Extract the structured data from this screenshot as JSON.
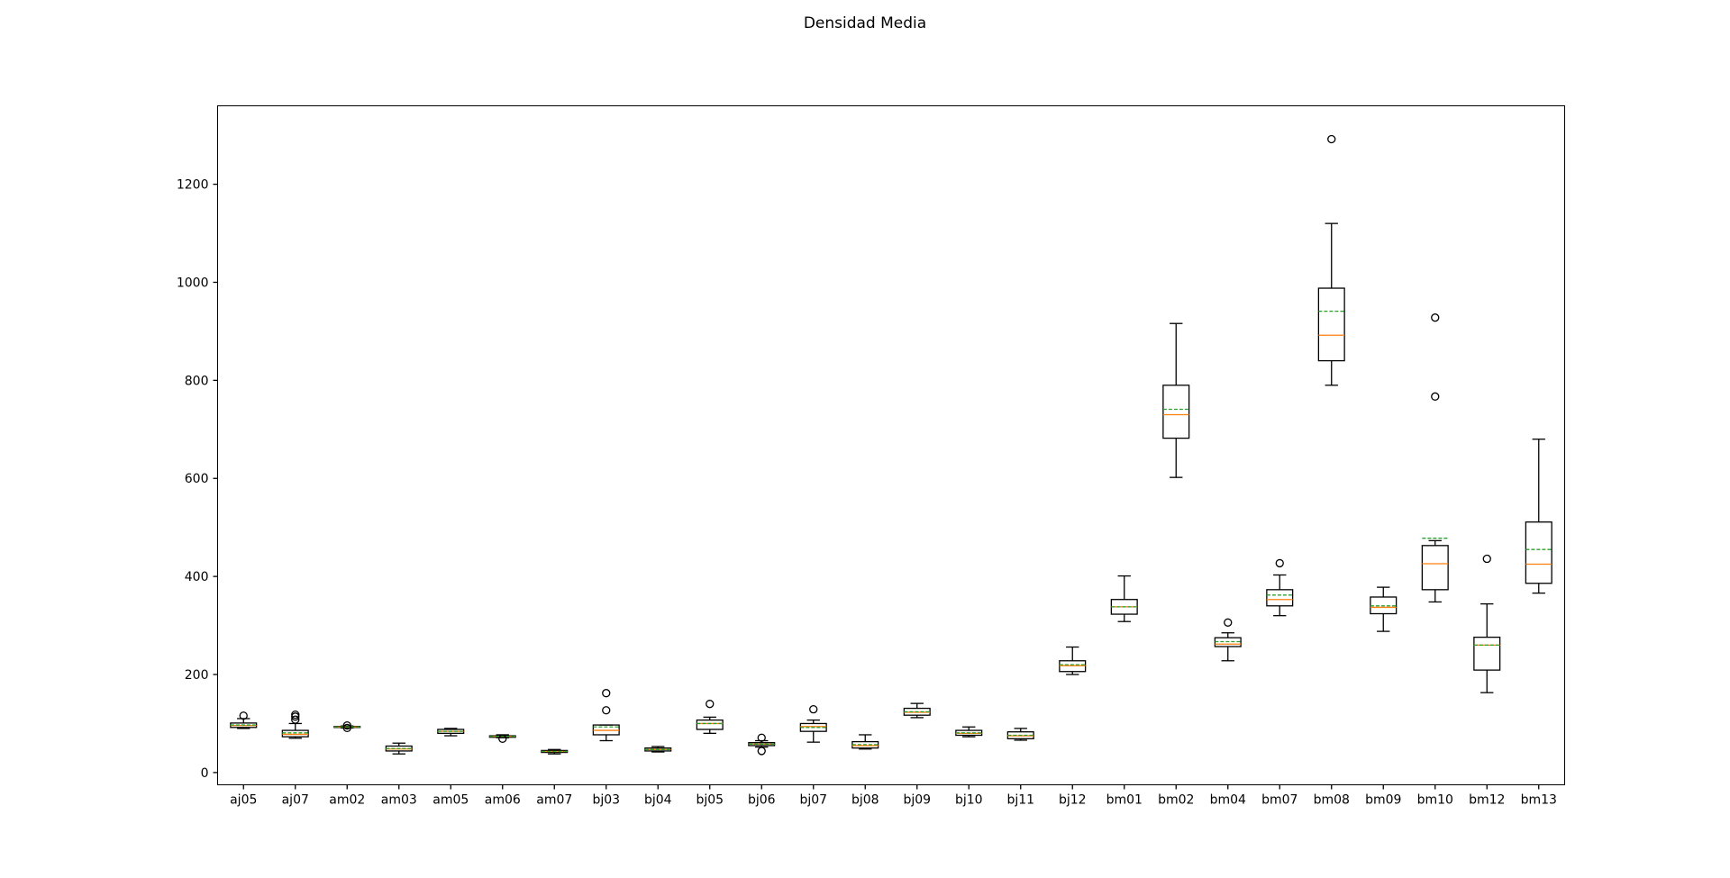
{
  "chart_data": {
    "type": "box",
    "title": "Densidad Media",
    "xlabel": "",
    "ylabel": "",
    "ylim": [
      -25,
      1360
    ],
    "yticks": [
      0,
      200,
      400,
      600,
      800,
      1000,
      1200
    ],
    "grid": false,
    "legend": "none",
    "colors": {
      "median": "#ff7f0e",
      "mean": "#2ca02c",
      "box": "#000000"
    },
    "categories": [
      "aj05",
      "aj07",
      "am02",
      "am03",
      "am05",
      "am06",
      "am07",
      "bj03",
      "bj04",
      "bj05",
      "bj06",
      "bj07",
      "bj08",
      "bj09",
      "bj10",
      "bj11",
      "bj12",
      "bm01",
      "bm02",
      "bm04",
      "bm07",
      "bm08",
      "bm09",
      "bm10",
      "bm12",
      "bm13"
    ],
    "boxes": [
      {
        "whislo": 90,
        "q1": 92,
        "med": 96,
        "mean": 97,
        "q3": 101,
        "whishi": 110,
        "fliers": [
          116
        ]
      },
      {
        "whislo": 70,
        "q1": 73,
        "med": 78,
        "mean": 81,
        "q3": 86,
        "whishi": 100,
        "fliers": [
          108,
          114,
          118
        ]
      },
      {
        "whislo": 91,
        "q1": 92,
        "med": 93,
        "mean": 93,
        "q3": 94,
        "whishi": 95,
        "fliers": [
          91,
          96
        ]
      },
      {
        "whislo": 38,
        "q1": 44,
        "med": 48,
        "mean": 49,
        "q3": 54,
        "whishi": 60,
        "fliers": []
      },
      {
        "whislo": 75,
        "q1": 80,
        "med": 84,
        "mean": 84,
        "q3": 88,
        "whishi": 90,
        "fliers": []
      },
      {
        "whislo": 71,
        "q1": 72,
        "med": 74,
        "mean": 74,
        "q3": 75,
        "whishi": 77,
        "fliers": [
          69
        ]
      },
      {
        "whislo": 38,
        "q1": 41,
        "med": 43,
        "mean": 43,
        "q3": 45,
        "whishi": 47,
        "fliers": []
      },
      {
        "whislo": 65,
        "q1": 77,
        "med": 86,
        "mean": 93,
        "q3": 97,
        "whishi": 97,
        "fliers": [
          127,
          162
        ]
      },
      {
        "whislo": 42,
        "q1": 44,
        "med": 47,
        "mean": 47,
        "q3": 50,
        "whishi": 53,
        "fliers": []
      },
      {
        "whislo": 80,
        "q1": 88,
        "med": 100,
        "mean": 100,
        "q3": 107,
        "whishi": 113,
        "fliers": [
          140
        ]
      },
      {
        "whislo": 52,
        "q1": 55,
        "med": 58,
        "mean": 58,
        "q3": 61,
        "whishi": 65,
        "fliers": [
          44,
          71
        ]
      },
      {
        "whislo": 62,
        "q1": 84,
        "med": 94,
        "mean": 92,
        "q3": 100,
        "whishi": 107,
        "fliers": [
          129
        ]
      },
      {
        "whislo": 48,
        "q1": 50,
        "med": 55,
        "mean": 57,
        "q3": 63,
        "whishi": 77,
        "fliers": []
      },
      {
        "whislo": 112,
        "q1": 117,
        "med": 123,
        "mean": 124,
        "q3": 131,
        "whishi": 141,
        "fliers": []
      },
      {
        "whislo": 73,
        "q1": 76,
        "med": 80,
        "mean": 81,
        "q3": 86,
        "whishi": 93,
        "fliers": []
      },
      {
        "whislo": 66,
        "q1": 69,
        "med": 75,
        "mean": 76,
        "q3": 83,
        "whishi": 90,
        "fliers": []
      },
      {
        "whislo": 200,
        "q1": 206,
        "med": 218,
        "mean": 220,
        "q3": 228,
        "whishi": 256,
        "fliers": []
      },
      {
        "whislo": 308,
        "q1": 323,
        "med": 338,
        "mean": 338,
        "q3": 353,
        "whishi": 401,
        "fliers": []
      },
      {
        "whislo": 602,
        "q1": 682,
        "med": 730,
        "mean": 741,
        "q3": 790,
        "whishi": 916,
        "fliers": []
      },
      {
        "whislo": 228,
        "q1": 257,
        "med": 262,
        "mean": 267,
        "q3": 275,
        "whishi": 285,
        "fliers": [
          306
        ]
      },
      {
        "whislo": 320,
        "q1": 340,
        "med": 353,
        "mean": 362,
        "q3": 373,
        "whishi": 403,
        "fliers": [
          427
        ]
      },
      {
        "whislo": 790,
        "q1": 840,
        "med": 892,
        "mean": 941,
        "q3": 988,
        "whishi": 1120,
        "fliers": [
          1292
        ]
      },
      {
        "whislo": 288,
        "q1": 324,
        "med": 337,
        "mean": 340,
        "q3": 358,
        "whishi": 378,
        "fliers": []
      },
      {
        "whislo": 348,
        "q1": 373,
        "med": 426,
        "mean": 478,
        "q3": 463,
        "whishi": 473,
        "fliers": [
          767,
          928
        ]
      },
      {
        "whislo": 163,
        "q1": 209,
        "med": 260,
        "mean": 260,
        "q3": 276,
        "whishi": 344,
        "fliers": [
          436
        ]
      },
      {
        "whislo": 366,
        "q1": 386,
        "med": 425,
        "mean": 455,
        "q3": 511,
        "whishi": 680,
        "fliers": []
      }
    ]
  }
}
